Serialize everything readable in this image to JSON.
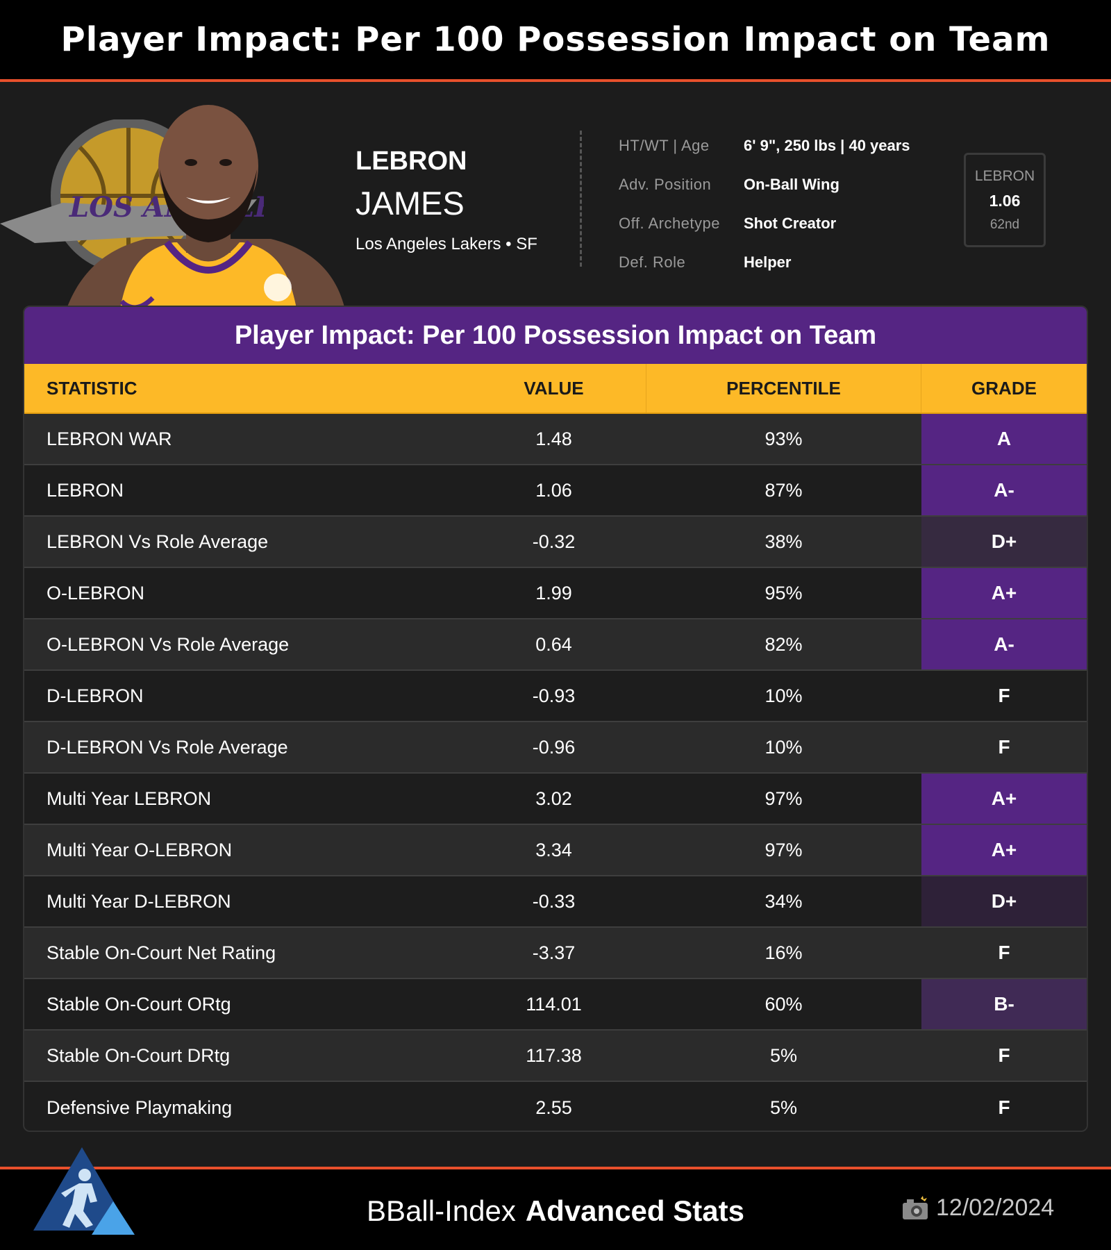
{
  "header_title": "Player Impact: Per 100 Possession Impact on Team",
  "player": {
    "first_name": "LEBRON",
    "last_name": "JAMES",
    "team_position": "Los Angeles Lakers • SF",
    "logo_text": "LOS ANGELES LAKERS",
    "info": [
      {
        "label": "HT/WT | Age",
        "value": "6' 9\", 250 lbs | 40 years"
      },
      {
        "label": "Adv. Position",
        "value": "On-Ball Wing"
      },
      {
        "label": "Off. Archetype",
        "value": "Shot Creator"
      },
      {
        "label": "Def. Role",
        "value": "Helper"
      }
    ],
    "metric_box": {
      "label": "LEBRON",
      "value": "1.06",
      "rank": "62nd"
    }
  },
  "table": {
    "title": "Player Impact: Per 100 Possession Impact on Team",
    "columns": [
      "STATISTIC",
      "VALUE",
      "PERCENTILE",
      "GRADE"
    ],
    "rows": [
      {
        "stat": "LEBRON WAR",
        "value": "1.48",
        "percentile": "93%",
        "grade": "A",
        "grade_color": "#552583"
      },
      {
        "stat": "LEBRON",
        "value": "1.06",
        "percentile": "87%",
        "grade": "A-",
        "grade_color": "#552583"
      },
      {
        "stat": "LEBRON Vs Role Average",
        "value": "-0.32",
        "percentile": "38%",
        "grade": "D+",
        "grade_color": "#362a40"
      },
      {
        "stat": "O-LEBRON",
        "value": "1.99",
        "percentile": "95%",
        "grade": "A+",
        "grade_color": "#552583"
      },
      {
        "stat": "O-LEBRON Vs Role Average",
        "value": "0.64",
        "percentile": "82%",
        "grade": "A-",
        "grade_color": "#552583"
      },
      {
        "stat": "D-LEBRON",
        "value": "-0.93",
        "percentile": "10%",
        "grade": "F",
        "grade_color": ""
      },
      {
        "stat": "D-LEBRON Vs Role Average",
        "value": "-0.96",
        "percentile": "10%",
        "grade": "F",
        "grade_color": ""
      },
      {
        "stat": "Multi Year LEBRON",
        "value": "3.02",
        "percentile": "97%",
        "grade": "A+",
        "grade_color": "#552583"
      },
      {
        "stat": "Multi Year O-LEBRON",
        "value": "3.34",
        "percentile": "97%",
        "grade": "A+",
        "grade_color": "#552583"
      },
      {
        "stat": "Multi Year D-LEBRON",
        "value": "-0.33",
        "percentile": "34%",
        "grade": "D+",
        "grade_color": "#2e2138"
      },
      {
        "stat": "Stable On-Court Net Rating",
        "value": "-3.37",
        "percentile": "16%",
        "grade": "F",
        "grade_color": ""
      },
      {
        "stat": "Stable On-Court ORtg",
        "value": "114.01",
        "percentile": "60%",
        "grade": "B-",
        "grade_color": "#402a55"
      },
      {
        "stat": "Stable On-Court DRtg",
        "value": "117.38",
        "percentile": "5%",
        "grade": "F",
        "grade_color": ""
      },
      {
        "stat": "Defensive Playmaking",
        "value": "2.55",
        "percentile": "5%",
        "grade": "F",
        "grade_color": ""
      }
    ]
  },
  "footer": {
    "brand_light": "BBall-Index",
    "brand_bold": "Advanced Stats",
    "date": "12/02/2024"
  },
  "icons": {
    "footer_logo": "bball-index-logo-icon",
    "camera": "camera-icon"
  },
  "colors": {
    "accent_orange": "#e8502c",
    "lakers_purple": "#552583",
    "lakers_gold": "#fdb927"
  }
}
